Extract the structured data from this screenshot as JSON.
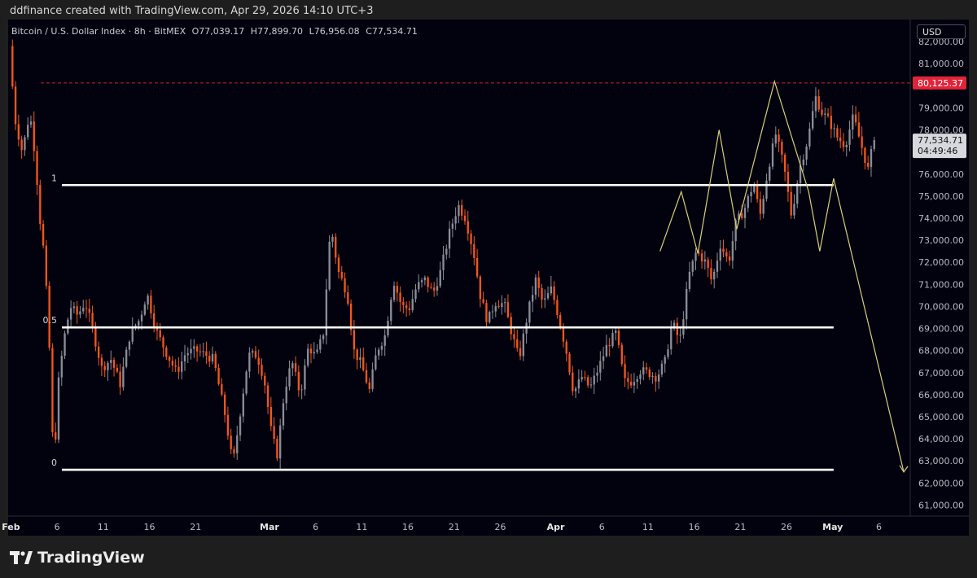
{
  "credit": "ddfinance created with TradingView.com, Apr 29, 2026 14:10 UTC+3",
  "legend": {
    "symbol": "Bitcoin / U.S. Dollar Index · 8h · BitMEX",
    "open": "O77,039.17",
    "high": "H77,899.70",
    "low": "L76,956.08",
    "close": "C77,534.71"
  },
  "currency_button": "USD",
  "brand": "TradingView",
  "colors": {
    "background": "#02020f",
    "up_candle": "#8a8d96",
    "down_candle": "#f2571a",
    "level_line": "#ffffff",
    "red_dashed": "#c4242f",
    "projection": "#d8cf7a",
    "price_tag_red": "#e0243a"
  },
  "chart_data": {
    "type": "candlestick",
    "symbol": "Bitcoin / U.S. Dollar Index",
    "timeframe": "8h",
    "exchange": "BitMEX",
    "y_range": [
      60500,
      83000
    ],
    "y_ticks": [
      61000,
      62000,
      63000,
      64000,
      65000,
      66000,
      67000,
      68000,
      69000,
      70000,
      71000,
      72000,
      73000,
      74000,
      75000,
      76000,
      77000,
      78000,
      79000,
      80000,
      81000,
      82000
    ],
    "y_tick_labels": [
      "61,000.00",
      "62,000.00",
      "63,000.00",
      "64,000.00",
      "65,000.00",
      "66,000.00",
      "67,000.00",
      "68,000.00",
      "69,000.00",
      "70,000.00",
      "71,000.00",
      "72,000.00",
      "73,000.00",
      "74,000.00",
      "75,000.00",
      "76,000.00",
      "77,000.00",
      "78,000.00",
      "79,000.00",
      "80,000.00",
      "81,000.00",
      "82,000.00"
    ],
    "x_range": [
      -0.3,
      97.4
    ],
    "x_ticks": [
      {
        "label": "Feb",
        "day": 0
      },
      {
        "label": "6",
        "day": 5
      },
      {
        "label": "11",
        "day": 10
      },
      {
        "label": "16",
        "day": 15
      },
      {
        "label": "21",
        "day": 20
      },
      {
        "label": "Mar",
        "day": 28
      },
      {
        "label": "6",
        "day": 33
      },
      {
        "label": "11",
        "day": 38
      },
      {
        "label": "16",
        "day": 43
      },
      {
        "label": "21",
        "day": 48
      },
      {
        "label": "26",
        "day": 53
      },
      {
        "label": "Apr",
        "day": 59
      },
      {
        "label": "6",
        "day": 64
      },
      {
        "label": "11",
        "day": 69
      },
      {
        "label": "16",
        "day": 74
      },
      {
        "label": "21",
        "day": 79
      },
      {
        "label": "26",
        "day": 84
      },
      {
        "label": "May",
        "day": 89
      },
      {
        "label": "6",
        "day": 94
      }
    ],
    "fib_levels": [
      {
        "label": "1",
        "value": 75500,
        "day_start": -0.3,
        "day_end": 89.1
      },
      {
        "label": "0.5",
        "value": 69050,
        "day_start": -0.3,
        "day_end": 89.1
      },
      {
        "label": "0",
        "value": 62600,
        "day_start": -0.3,
        "day_end": 89.1
      }
    ],
    "resistance": {
      "value": 80125.37,
      "label": "80,125.37"
    },
    "last_price": {
      "value": 77534.71,
      "label": "77,534.71",
      "countdown": "04:49:46"
    },
    "projection_path": [
      {
        "day": 70.3,
        "price": 72500
      },
      {
        "day": 72.6,
        "price": 75200
      },
      {
        "day": 74.4,
        "price": 72400
      },
      {
        "day": 76.7,
        "price": 78000
      },
      {
        "day": 78.6,
        "price": 73500
      },
      {
        "day": 82.7,
        "price": 80200
      },
      {
        "day": 86.4,
        "price": 75200
      },
      {
        "day": 87.6,
        "price": 72500
      },
      {
        "day": 89.1,
        "price": 75800
      },
      {
        "day": 96.7,
        "price": 62500
      }
    ],
    "price_path": [
      {
        "day": -0.6,
        "price": 83000
      },
      {
        "day": 0.0,
        "price": 81800
      },
      {
        "day": 0.6,
        "price": 78500
      },
      {
        "day": 1.4,
        "price": 77000
      },
      {
        "day": 2.2,
        "price": 78800
      },
      {
        "day": 2.8,
        "price": 76800
      },
      {
        "day": 3.3,
        "price": 74000
      },
      {
        "day": 3.8,
        "price": 72200
      },
      {
        "day": 4.3,
        "price": 68500
      },
      {
        "day": 4.8,
        "price": 62600
      },
      {
        "day": 5.3,
        "price": 66500
      },
      {
        "day": 5.9,
        "price": 68500
      },
      {
        "day": 6.6,
        "price": 70000
      },
      {
        "day": 7.4,
        "price": 69600
      },
      {
        "day": 8.2,
        "price": 70200
      },
      {
        "day": 9.0,
        "price": 69000
      },
      {
        "day": 10.0,
        "price": 67200
      },
      {
        "day": 11.0,
        "price": 67600
      },
      {
        "day": 12.0,
        "price": 66500
      },
      {
        "day": 13.1,
        "price": 68800
      },
      {
        "day": 14.1,
        "price": 69400
      },
      {
        "day": 14.9,
        "price": 70600
      },
      {
        "day": 15.9,
        "price": 68900
      },
      {
        "day": 17.0,
        "price": 67900
      },
      {
        "day": 18.1,
        "price": 67000
      },
      {
        "day": 19.1,
        "price": 67900
      },
      {
        "day": 20.3,
        "price": 68000
      },
      {
        "day": 21.3,
        "price": 67800
      },
      {
        "day": 22.1,
        "price": 67600
      },
      {
        "day": 23.4,
        "price": 65000
      },
      {
        "day": 24.2,
        "price": 62800
      },
      {
        "day": 25.0,
        "price": 65200
      },
      {
        "day": 25.9,
        "price": 67800
      },
      {
        "day": 26.8,
        "price": 67800
      },
      {
        "day": 27.6,
        "price": 66700
      },
      {
        "day": 28.4,
        "price": 64200
      },
      {
        "day": 29.0,
        "price": 63300
      },
      {
        "day": 29.8,
        "price": 66200
      },
      {
        "day": 30.6,
        "price": 67500
      },
      {
        "day": 31.5,
        "price": 66000
      },
      {
        "day": 32.4,
        "price": 68200
      },
      {
        "day": 33.2,
        "price": 67700
      },
      {
        "day": 34.0,
        "price": 68800
      },
      {
        "day": 34.8,
        "price": 73700
      },
      {
        "day": 35.6,
        "price": 71600
      },
      {
        "day": 36.6,
        "price": 70600
      },
      {
        "day": 37.3,
        "price": 68000
      },
      {
        "day": 38.1,
        "price": 67400
      },
      {
        "day": 39.0,
        "price": 66200
      },
      {
        "day": 39.8,
        "price": 68000
      },
      {
        "day": 40.7,
        "price": 68700
      },
      {
        "day": 41.6,
        "price": 71200
      },
      {
        "day": 42.5,
        "price": 70000
      },
      {
        "day": 43.3,
        "price": 69900
      },
      {
        "day": 44.1,
        "price": 70900
      },
      {
        "day": 45.0,
        "price": 71200
      },
      {
        "day": 45.9,
        "price": 70600
      },
      {
        "day": 46.7,
        "price": 71600
      },
      {
        "day": 47.7,
        "price": 73400
      },
      {
        "day": 48.6,
        "price": 74600
      },
      {
        "day": 49.4,
        "price": 74000
      },
      {
        "day": 50.3,
        "price": 72400
      },
      {
        "day": 51.0,
        "price": 70500
      },
      {
        "day": 51.8,
        "price": 69300
      },
      {
        "day": 52.6,
        "price": 70200
      },
      {
        "day": 53.6,
        "price": 70100
      },
      {
        "day": 54.4,
        "price": 68800
      },
      {
        "day": 55.2,
        "price": 67600
      },
      {
        "day": 56.1,
        "price": 69600
      },
      {
        "day": 57.0,
        "price": 71200
      },
      {
        "day": 57.8,
        "price": 70100
      },
      {
        "day": 58.7,
        "price": 70800
      },
      {
        "day": 59.5,
        "price": 69500
      },
      {
        "day": 60.4,
        "price": 67800
      },
      {
        "day": 61.1,
        "price": 66100
      },
      {
        "day": 62.0,
        "price": 66800
      },
      {
        "day": 62.9,
        "price": 66300
      },
      {
        "day": 63.8,
        "price": 67200
      },
      {
        "day": 64.7,
        "price": 68200
      },
      {
        "day": 65.7,
        "price": 68800
      },
      {
        "day": 66.6,
        "price": 66600
      },
      {
        "day": 67.4,
        "price": 66600
      },
      {
        "day": 68.3,
        "price": 67100
      },
      {
        "day": 69.2,
        "price": 67000
      },
      {
        "day": 70.1,
        "price": 66800
      },
      {
        "day": 71.0,
        "price": 67500
      },
      {
        "day": 71.8,
        "price": 69300
      },
      {
        "day": 72.6,
        "price": 68400
      },
      {
        "day": 73.6,
        "price": 71400
      },
      {
        "day": 74.4,
        "price": 72500
      },
      {
        "day": 75.4,
        "price": 72000
      },
      {
        "day": 76.1,
        "price": 71100
      },
      {
        "day": 77.0,
        "price": 72800
      },
      {
        "day": 77.9,
        "price": 72000
      },
      {
        "day": 78.7,
        "price": 73800
      },
      {
        "day": 79.6,
        "price": 74400
      },
      {
        "day": 80.6,
        "price": 75600
      },
      {
        "day": 81.3,
        "price": 74100
      },
      {
        "day": 82.2,
        "price": 76300
      },
      {
        "day": 83.0,
        "price": 77800
      },
      {
        "day": 83.9,
        "price": 76300
      },
      {
        "day": 84.7,
        "price": 74100
      },
      {
        "day": 85.6,
        "price": 76300
      },
      {
        "day": 86.5,
        "price": 77600
      },
      {
        "day": 87.3,
        "price": 79500
      },
      {
        "day": 88.0,
        "price": 78800
      },
      {
        "day": 88.8,
        "price": 78400
      },
      {
        "day": 89.6,
        "price": 77700
      },
      {
        "day": 90.5,
        "price": 77300
      },
      {
        "day": 91.4,
        "price": 78600
      },
      {
        "day": 92.2,
        "price": 77400
      },
      {
        "day": 93.0,
        "price": 76200
      },
      {
        "day": 93.6,
        "price": 77500
      }
    ]
  }
}
